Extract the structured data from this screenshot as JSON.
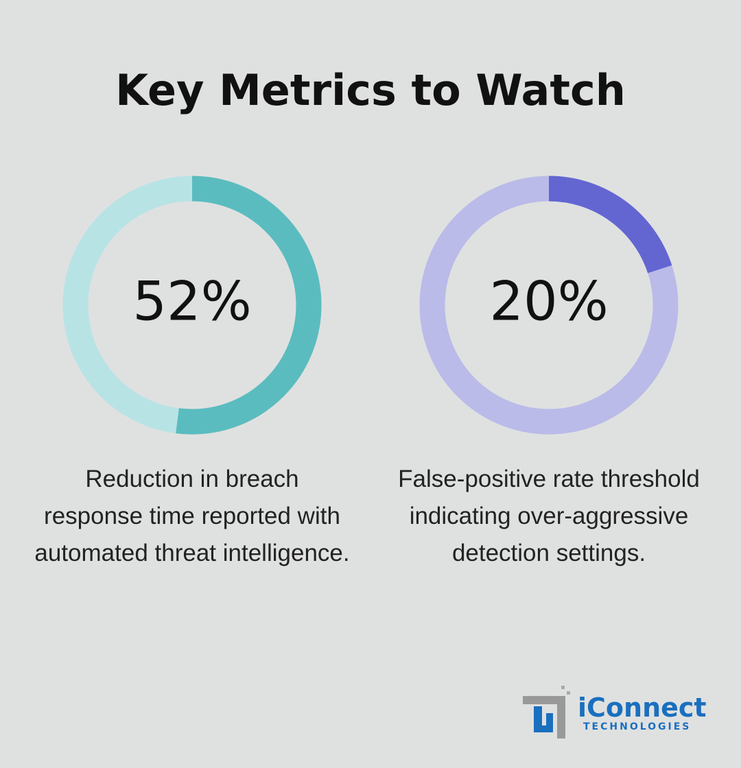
{
  "title": "Key Metrics to Watch",
  "chart_data": [
    {
      "type": "donut",
      "values": [
        52
      ],
      "value_labels": [
        "52%"
      ],
      "color": "#5bbcbf",
      "track_color": "#b8e3e5",
      "caption": "Reduction in breach response time reported with automated threat intelligence."
    },
    {
      "type": "donut",
      "values": [
        20
      ],
      "value_labels": [
        "20%"
      ],
      "color": "#6366d1",
      "track_color": "#babbe9",
      "caption": "False-positive rate threshold indicating over-aggressive detection settings."
    }
  ],
  "logo": {
    "name": "iConnect",
    "tagline": "TECHNOLOGIES"
  }
}
